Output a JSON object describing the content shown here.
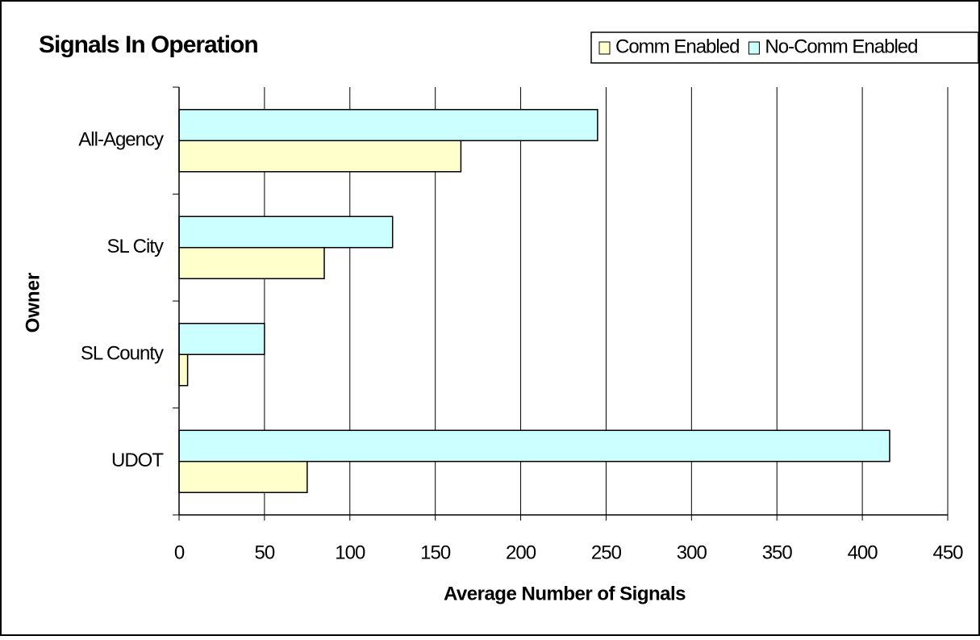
{
  "chart_data": {
    "type": "bar",
    "orientation": "horizontal",
    "title": "Signals In Operation",
    "x_label": "Average Number of Signals",
    "y_label": "Owner",
    "categories": [
      "All-Agency",
      "SL City",
      "SL County",
      "UDOT"
    ],
    "series": [
      {
        "name": "Comm Enabled",
        "color": "#ffffcc",
        "values": [
          165,
          85,
          5,
          75
        ]
      },
      {
        "name": "No-Comm Enabled",
        "color": "#ccffff",
        "values": [
          245,
          125,
          50,
          416
        ]
      }
    ],
    "xlim": [
      0,
      450
    ],
    "xticks": [
      0,
      50,
      100,
      150,
      200,
      250,
      300,
      350,
      400,
      450
    ],
    "grid": true,
    "legend": "top-right"
  }
}
